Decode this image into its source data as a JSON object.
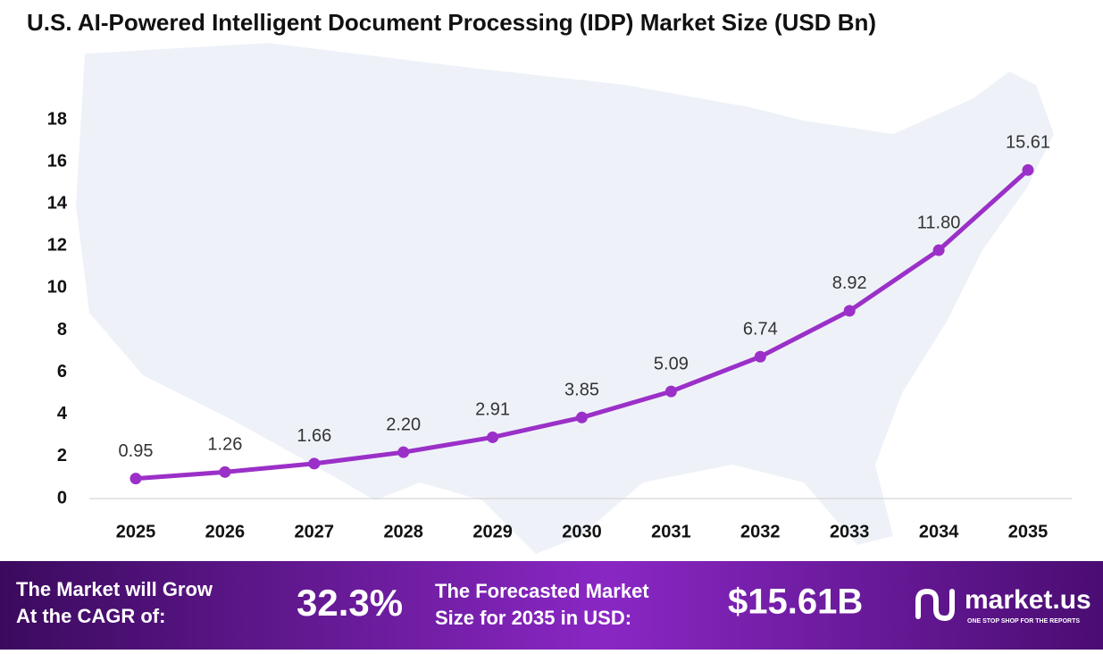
{
  "chart_data": {
    "type": "line",
    "title": "U.S. AI-Powered Intelligent Document Processing (IDP) Market Size (USD Bn)",
    "categories": [
      "2025",
      "2026",
      "2027",
      "2028",
      "2029",
      "2030",
      "2031",
      "2032",
      "2033",
      "2034",
      "2035"
    ],
    "values": [
      0.95,
      1.26,
      1.66,
      2.2,
      2.91,
      3.85,
      5.09,
      6.74,
      8.92,
      11.8,
      15.61
    ],
    "value_labels": [
      "0.95",
      "1.26",
      "1.66",
      "2.20",
      "2.91",
      "3.85",
      "5.09",
      "6.74",
      "8.92",
      "11.80",
      "15.61"
    ],
    "color": "#9b30c8",
    "ylim": [
      0,
      18
    ],
    "yticks": [
      0,
      2,
      4,
      6,
      8,
      10,
      12,
      14,
      16,
      18
    ],
    "grid": false
  },
  "footer": {
    "cagr_label": [
      "The Market will Grow",
      "At the CAGR of:"
    ],
    "cagr_value": "32.3%",
    "forecast_label": [
      "The Forecasted Market",
      "Size for 2035 in USD:"
    ],
    "forecast_value": "$15.61B",
    "brand": "market.us",
    "tagline": "ONE STOP SHOP FOR THE REPORTS"
  }
}
